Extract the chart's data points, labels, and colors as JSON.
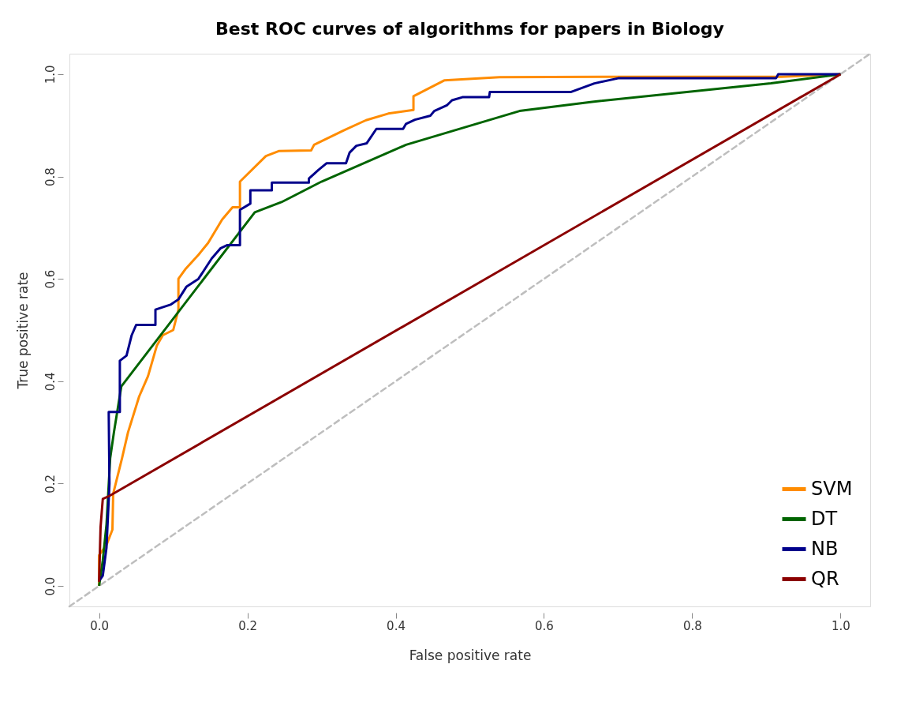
{
  "chart_data": {
    "type": "line",
    "title": "Best ROC curves of algorithms for papers in Biology",
    "xlabel": "False positive rate",
    "ylabel": "True positive rate",
    "xlim": [
      -0.04,
      1.04
    ],
    "ylim": [
      -0.04,
      1.04
    ],
    "xticks": [
      {
        "value": 0,
        "label": "0.0"
      },
      {
        "value": 0.2,
        "label": "0.2"
      },
      {
        "value": 0.4,
        "label": "0.4"
      },
      {
        "value": 0.6,
        "label": "0.6"
      },
      {
        "value": 0.8,
        "label": "0.8"
      },
      {
        "value": 1,
        "label": "1.0"
      }
    ],
    "yticks": [
      {
        "value": 0,
        "label": "0.0"
      },
      {
        "value": 0.2,
        "label": "0.2"
      },
      {
        "value": 0.4,
        "label": "0.4"
      },
      {
        "value": 0.6,
        "label": "0.6"
      },
      {
        "value": 0.8,
        "label": "0.8"
      },
      {
        "value": 1,
        "label": "1.0"
      }
    ],
    "grid": false,
    "legend": "bottom right",
    "marker": "none",
    "line_style": "solid",
    "series": [
      {
        "x": [
          -0.04,
          1.04
        ],
        "values": [
          -0.04,
          1.04
        ],
        "color": "#bebebe",
        "line_style": "dashed"
      },
      {
        "name": "SVM",
        "color": "#ff8c00",
        "x": [
          0,
          0,
          0.01,
          0.018,
          0.019,
          0.031,
          0.039,
          0.054,
          0.066,
          0.078,
          0.086,
          0.1,
          0.107,
          0.107,
          0.117,
          0.134,
          0.147,
          0.166,
          0.18,
          0.19,
          0.19,
          0.225,
          0.243,
          0.286,
          0.29,
          0.33,
          0.36,
          0.39,
          0.424,
          0.424,
          0.466,
          0.54,
          0.7,
          0.92,
          1
        ],
        "values": [
          0,
          0.06,
          0.08,
          0.11,
          0.18,
          0.25,
          0.3,
          0.37,
          0.41,
          0.47,
          0.49,
          0.5,
          0.54,
          0.6,
          0.62,
          0.647,
          0.67,
          0.716,
          0.74,
          0.74,
          0.79,
          0.84,
          0.85,
          0.851,
          0.862,
          0.89,
          0.91,
          0.923,
          0.93,
          0.957,
          0.988,
          0.994,
          0.995,
          0.995,
          1
        ]
      },
      {
        "name": "DT",
        "color": "#006400",
        "x": [
          0,
          0.005,
          0.01,
          0.015,
          0.02,
          0.03,
          0.21,
          0.246,
          0.3,
          0.414,
          0.567,
          0.665,
          0.906,
          1
        ],
        "values": [
          0,
          0.05,
          0.12,
          0.25,
          0.3,
          0.39,
          0.73,
          0.75,
          0.79,
          0.862,
          0.928,
          0.946,
          0.982,
          1
        ]
      },
      {
        "name": "NB",
        "color": "#00008b",
        "x": [
          0,
          0.005,
          0.01,
          0.014,
          0.013,
          0.028,
          0.028,
          0.037,
          0.044,
          0.05,
          0.076,
          0.076,
          0.097,
          0.107,
          0.118,
          0.134,
          0.143,
          0.152,
          0.164,
          0.173,
          0.19,
          0.19,
          0.204,
          0.204,
          0.233,
          0.233,
          0.283,
          0.283,
          0.296,
          0.307,
          0.333,
          0.338,
          0.347,
          0.361,
          0.374,
          0.41,
          0.414,
          0.426,
          0.447,
          0.452,
          0.469,
          0.476,
          0.49,
          0.526,
          0.527,
          0.636,
          0.668,
          0.7,
          0.913,
          0.916,
          1
        ],
        "values": [
          0.01,
          0.02,
          0.075,
          0.2,
          0.34,
          0.34,
          0.44,
          0.45,
          0.49,
          0.51,
          0.51,
          0.54,
          0.55,
          0.56,
          0.585,
          0.6,
          0.62,
          0.64,
          0.66,
          0.666,
          0.666,
          0.735,
          0.747,
          0.773,
          0.773,
          0.788,
          0.788,
          0.796,
          0.813,
          0.826,
          0.826,
          0.847,
          0.86,
          0.865,
          0.893,
          0.893,
          0.903,
          0.911,
          0.919,
          0.928,
          0.939,
          0.949,
          0.955,
          0.955,
          0.965,
          0.965,
          0.982,
          0.992,
          0.992,
          1,
          1
        ]
      },
      {
        "name": "QR",
        "color": "#8b0000",
        "x": [
          0,
          0.002,
          0.005,
          0.014,
          1
        ],
        "values": [
          0.008,
          0.115,
          0.17,
          0.176,
          1
        ]
      }
    ]
  }
}
